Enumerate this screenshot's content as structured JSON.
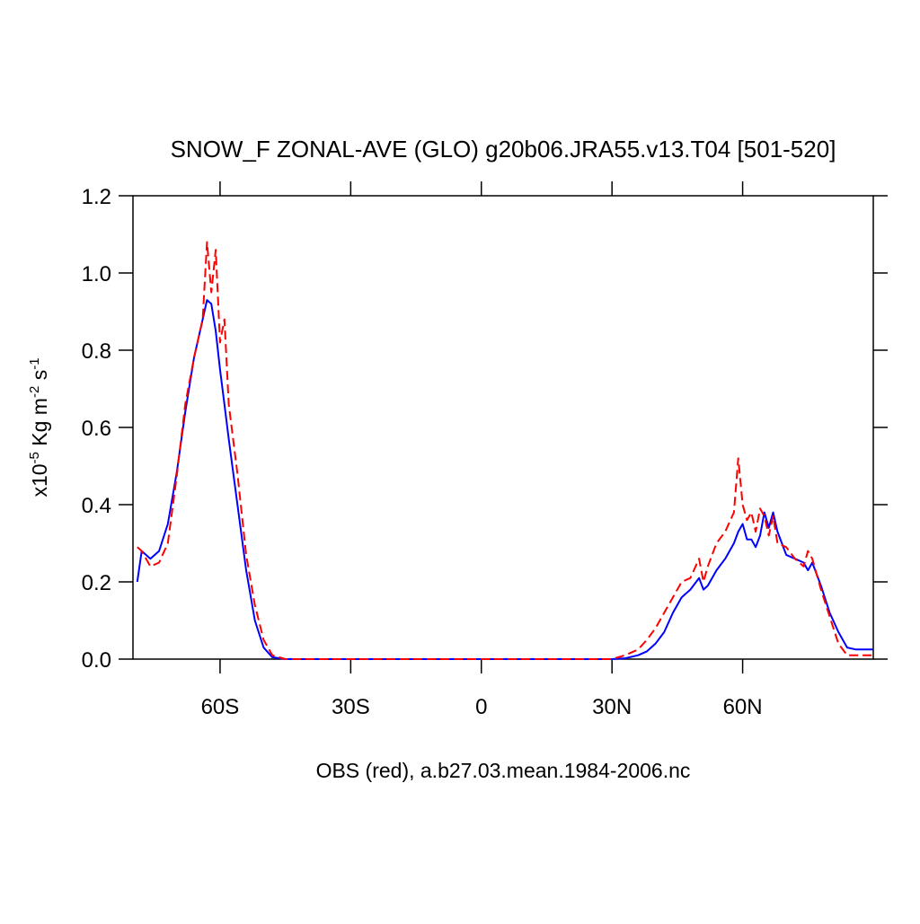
{
  "chart_data": {
    "type": "line",
    "title": "SNOW_F ZONAL-AVE (GLO) g20b06.JRA55.v13.T04 [501-520]",
    "xlabel": "OBS (red), a.b27.03.mean.1984-2006.nc",
    "ylabel_parts": [
      "x10",
      "-5",
      " Kg m",
      "-2",
      " s",
      "-1"
    ],
    "x": [
      -79,
      -78,
      -76,
      -74,
      -72,
      -70,
      -68,
      -66,
      -64,
      -63,
      -62,
      -61,
      -60,
      -59,
      -58,
      -56,
      -54,
      -52,
      -50,
      -48,
      -45,
      -30,
      -15,
      0,
      15,
      30,
      33,
      36,
      38,
      40,
      42,
      44,
      46,
      48,
      50,
      51,
      52,
      54,
      56,
      58,
      59,
      60,
      61,
      62,
      63,
      64,
      65,
      66,
      67,
      68,
      70,
      72,
      74,
      75,
      76,
      78,
      80,
      82,
      84,
      86,
      88,
      90
    ],
    "series": [
      {
        "color": "#0000ff",
        "dash": "none",
        "values": [
          0.2,
          0.28,
          0.26,
          0.28,
          0.35,
          0.48,
          0.64,
          0.78,
          0.88,
          0.93,
          0.92,
          0.85,
          0.75,
          0.66,
          0.57,
          0.4,
          0.23,
          0.1,
          0.03,
          0.005,
          0,
          0,
          0,
          0,
          0,
          0,
          0.002,
          0.01,
          0.02,
          0.04,
          0.07,
          0.12,
          0.16,
          0.18,
          0.21,
          0.18,
          0.19,
          0.23,
          0.26,
          0.3,
          0.33,
          0.35,
          0.31,
          0.31,
          0.29,
          0.32,
          0.38,
          0.34,
          0.38,
          0.33,
          0.27,
          0.26,
          0.25,
          0.23,
          0.25,
          0.19,
          0.12,
          0.07,
          0.03,
          0.025,
          0.025,
          0.025
        ]
      },
      {
        "color": "#ff0000",
        "dash": "10,5",
        "values": [
          0.29,
          0.28,
          0.24,
          0.25,
          0.3,
          0.47,
          0.66,
          0.78,
          0.88,
          1.08,
          0.95,
          1.06,
          0.82,
          0.88,
          0.66,
          0.48,
          0.27,
          0.14,
          0.05,
          0.01,
          0,
          0,
          0,
          0,
          0,
          0,
          0.01,
          0.025,
          0.05,
          0.08,
          0.12,
          0.16,
          0.2,
          0.21,
          0.26,
          0.2,
          0.24,
          0.3,
          0.33,
          0.38,
          0.52,
          0.4,
          0.36,
          0.38,
          0.33,
          0.39,
          0.37,
          0.32,
          0.37,
          0.3,
          0.29,
          0.26,
          0.24,
          0.28,
          0.26,
          0.18,
          0.11,
          0.04,
          0.01,
          0.01,
          0.01,
          0.01
        ]
      }
    ],
    "xlim": [
      -80,
      90
    ],
    "ylim": [
      0,
      1.2
    ],
    "xticks": [
      {
        "value": -60,
        "label": "60S"
      },
      {
        "value": -30,
        "label": "30S"
      },
      0,
      {
        "value": 30,
        "label": "30N"
      },
      {
        "value": 60,
        "label": "60N"
      }
    ],
    "yticks": [
      {
        "value": 0,
        "label": "0.0"
      },
      0.2,
      0.4,
      0.6,
      0.8,
      {
        "value": 1,
        "label": "1.0"
      },
      1.2
    ]
  }
}
